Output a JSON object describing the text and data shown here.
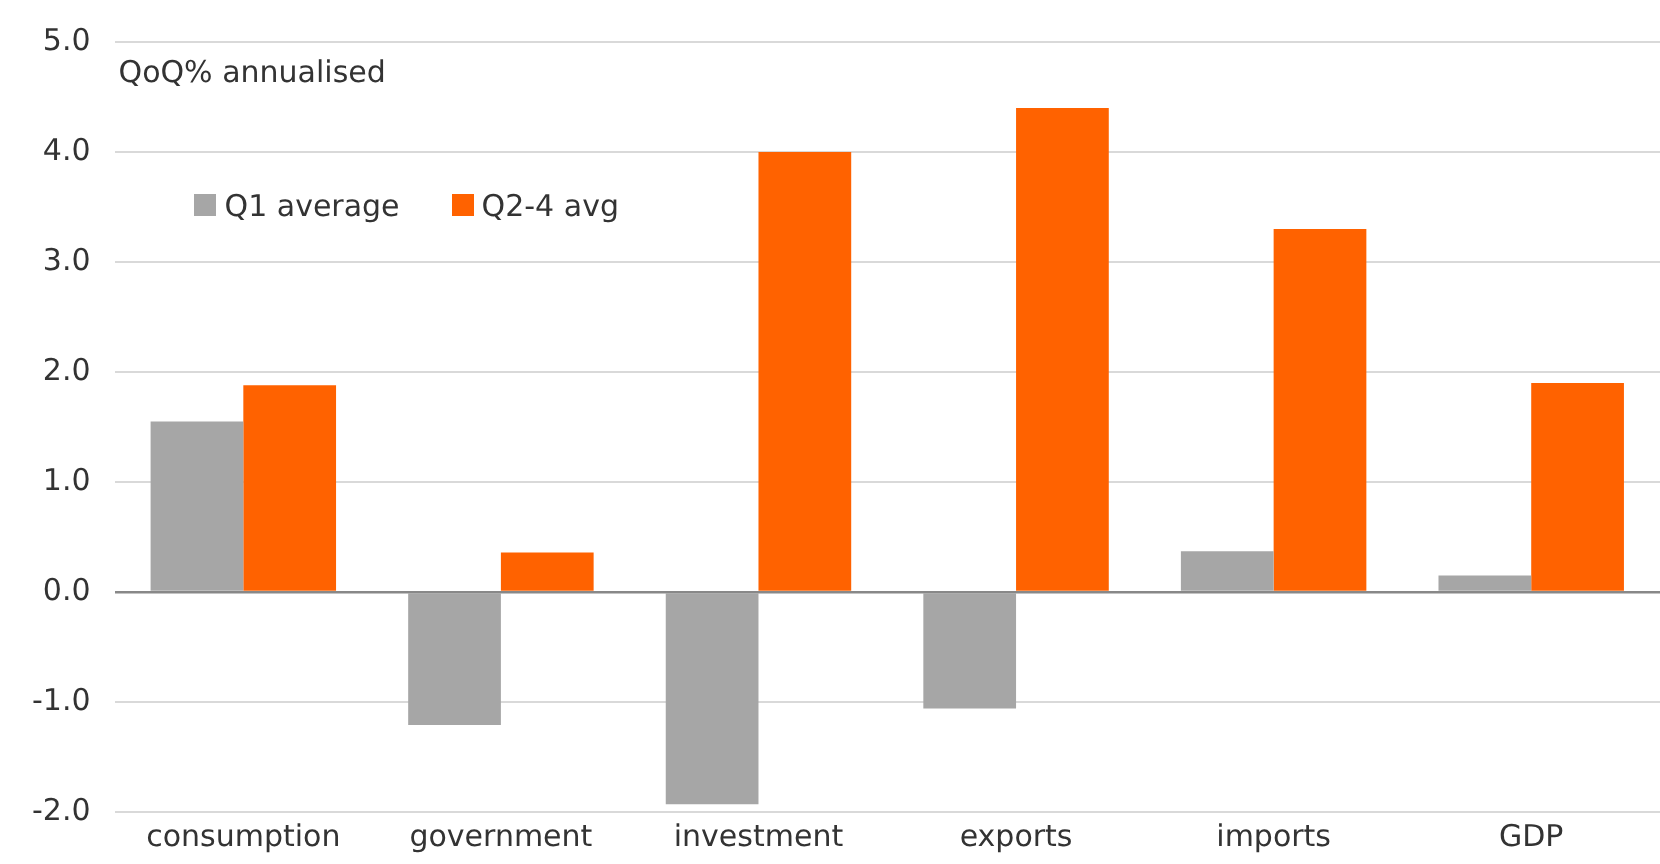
{
  "chart_data": {
    "type": "bar",
    "ylabel": "QoQ% annualised",
    "categories": [
      "consumption",
      "government",
      "investment",
      "exports",
      "imports",
      "GDP"
    ],
    "series": [
      {
        "name": "Q1 average",
        "color": "#a6a6a6",
        "values": [
          1.55,
          -1.21,
          -1.93,
          -1.06,
          0.37,
          0.15
        ]
      },
      {
        "name": "Q2-4 avg",
        "color": "#ff6200",
        "values": [
          1.88,
          0.36,
          4.0,
          4.4,
          3.3,
          1.9
        ]
      }
    ],
    "ylim": [
      -2,
      5
    ],
    "yticks": [
      {
        "value": -2,
        "label": "-2.0"
      },
      {
        "value": -1,
        "label": "-1.0"
      },
      {
        "value": 0,
        "label": "0.0"
      },
      {
        "value": 1,
        "label": "1.0"
      },
      {
        "value": 2,
        "label": "2.0"
      },
      {
        "value": 3,
        "label": "3.0"
      },
      {
        "value": 4,
        "label": "4.0"
      },
      {
        "value": 5,
        "label": "5.0"
      }
    ],
    "grid": "y",
    "legend": "top left"
  }
}
